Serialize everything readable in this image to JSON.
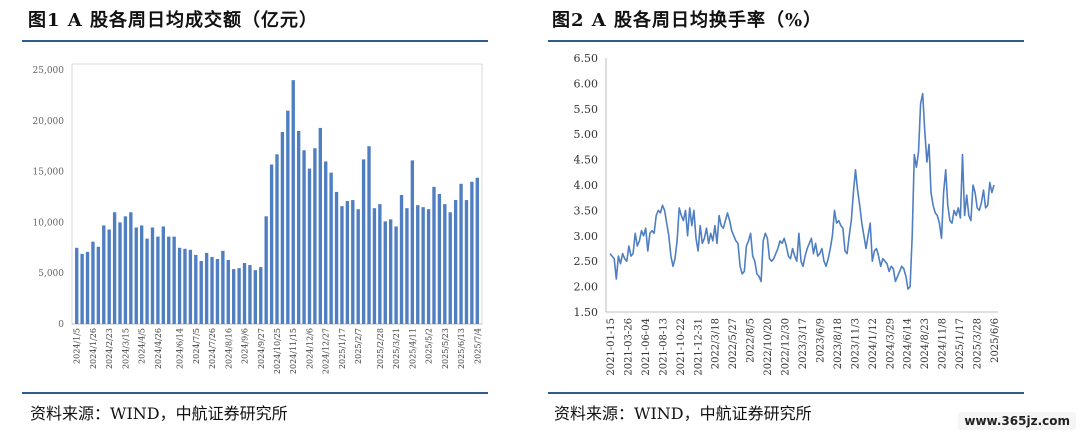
{
  "chart_data": [
    {
      "type": "bar",
      "title": "图1  A 股各周日均成交额（亿元）",
      "ylim": [
        0,
        25000
      ],
      "yticks": [
        0,
        5000,
        10000,
        15000,
        20000,
        25000
      ],
      "ytick_labels": [
        "0",
        "5,000",
        "10,000",
        "15,000",
        "20,000",
        "25,000"
      ],
      "xtick_labels": [
        "2024/1/5",
        "2024/1/26",
        "2024/2/23",
        "2024/3/15",
        "2024/4/5",
        "2024/4/26",
        "2024/6/14",
        "2024/7/5",
        "2024/7/26",
        "2024/8/16",
        "2024/9/6",
        "2024/9/27",
        "2024/10/25",
        "2024/11/15",
        "2024/12/6",
        "2024/12/27",
        "2025/1/17",
        "2025/2/7",
        "2025/2/28",
        "2025/3/21",
        "2025/4/11",
        "2025/5/2",
        "2025/5/23",
        "2025/6/13",
        "2025/7/4"
      ],
      "color": "#4f7fc1",
      "values": [
        7500,
        6900,
        7100,
        8100,
        7600,
        9700,
        9300,
        11000,
        10000,
        10600,
        11000,
        9500,
        9700,
        8400,
        9500,
        8600,
        9600,
        8600,
        8600,
        7500,
        7400,
        7300,
        6800,
        6200,
        7000,
        6600,
        6400,
        7200,
        6300,
        5400,
        5500,
        6000,
        5800,
        5300,
        5600,
        10600,
        15700,
        16700,
        18900,
        21000,
        24000,
        19000,
        17100,
        15300,
        17300,
        19300,
        16000,
        14900,
        13000,
        11600,
        12100,
        12200,
        11300,
        16200,
        17500,
        11400,
        11800,
        10100,
        10300,
        9600,
        12700,
        11400,
        16100,
        11700,
        11500,
        11300,
        13500,
        12800,
        11800,
        11000,
        12200,
        13800,
        12200,
        14000,
        14400
      ]
    },
    {
      "type": "line",
      "title": "图2  A 股各周日均换手率（%）",
      "ylim": [
        1.5,
        6.5
      ],
      "yticks": [
        1.5,
        2.0,
        2.5,
        3.0,
        3.5,
        4.0,
        4.5,
        5.0,
        5.5,
        6.0,
        6.5
      ],
      "ytick_labels": [
        "1.50",
        "2.00",
        "2.50",
        "3.00",
        "3.50",
        "4.00",
        "4.50",
        "5.00",
        "5.50",
        "6.00",
        "6.50"
      ],
      "xtick_labels": [
        "2021-01-15",
        "2021-03-26",
        "2021-06-04",
        "2021-08-13",
        "2021-10-22",
        "2021-12-31",
        "2022/3/18",
        "2022/5/27",
        "2022/8/5",
        "2022/10/20",
        "2022/12/30",
        "2023/3/17",
        "2023/6/9",
        "2023/8/18",
        "2023/11/3",
        "2024/1/12",
        "2024/3/29",
        "2024/6/14",
        "2024/8/23",
        "2024/11/8",
        "2025/1/17",
        "2025/3/28",
        "2025/6/6"
      ],
      "color": "#4f7fc1",
      "values": [
        2.65,
        2.6,
        2.55,
        2.15,
        2.6,
        2.45,
        2.65,
        2.55,
        2.5,
        2.8,
        2.6,
        2.65,
        3.05,
        2.8,
        2.9,
        3.1,
        3.0,
        3.15,
        2.7,
        3.05,
        3.1,
        3.05,
        3.4,
        3.5,
        3.45,
        3.6,
        3.5,
        3.25,
        3.0,
        2.6,
        2.4,
        2.55,
        2.9,
        3.55,
        3.4,
        3.3,
        3.5,
        3.0,
        3.55,
        3.2,
        3.5,
        2.95,
        2.7,
        3.2,
        2.85,
        2.95,
        3.15,
        2.85,
        3.05,
        2.9,
        3.2,
        2.85,
        3.4,
        3.2,
        3.15,
        3.3,
        3.45,
        3.3,
        3.1,
        3.0,
        2.9,
        2.85,
        2.4,
        2.25,
        2.3,
        2.8,
        2.9,
        3.05,
        2.6,
        2.5,
        2.25,
        2.2,
        2.1,
        2.9,
        3.05,
        2.95,
        2.55,
        2.5,
        2.55,
        2.65,
        2.75,
        2.9,
        2.85,
        2.95,
        2.8,
        2.6,
        2.55,
        2.75,
        2.6,
        2.5,
        3.05,
        2.5,
        2.4,
        2.6,
        2.75,
        2.85,
        2.95,
        2.65,
        2.85,
        2.6,
        2.65,
        2.75,
        2.5,
        2.4,
        2.55,
        2.75,
        3.0,
        3.5,
        3.25,
        3.3,
        3.2,
        3.15,
        2.7,
        2.65,
        3.0,
        3.3,
        3.85,
        4.3,
        3.9,
        3.6,
        3.25,
        3.0,
        2.75,
        3.0,
        3.25,
        2.5,
        2.7,
        2.75,
        2.6,
        2.4,
        2.55,
        2.5,
        2.45,
        2.3,
        2.4,
        2.35,
        2.1,
        2.2,
        2.3,
        2.4,
        2.35,
        2.2,
        1.95,
        2.0,
        3.0,
        4.6,
        4.35,
        4.65,
        5.6,
        5.8,
        5.05,
        4.45,
        4.8,
        3.85,
        3.6,
        3.45,
        3.4,
        3.25,
        2.95,
        3.85,
        4.3,
        3.6,
        3.3,
        3.25,
        3.5,
        3.4,
        3.55,
        3.35,
        4.6,
        3.4,
        3.8,
        3.4,
        3.3,
        4.0,
        3.85,
        3.55,
        3.5,
        3.65,
        3.9,
        3.55,
        3.6,
        4.05,
        3.85,
        4.0
      ]
    }
  ],
  "panels": {
    "left": {
      "title": "图1  A 股各周日均成交额（亿元）",
      "source": "资料来源：WIND，中航证券研究所"
    },
    "right": {
      "title": "图2  A 股各周日均换手率（%）",
      "source": "资料来源：WIND，中航证券研究所"
    }
  },
  "watermark": "www.365jz.com"
}
